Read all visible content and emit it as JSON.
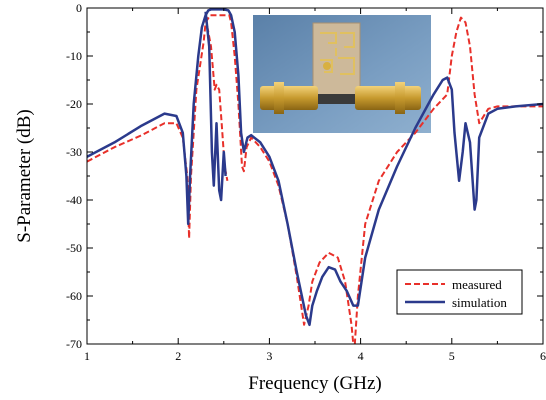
{
  "chart_data": {
    "type": "line",
    "xlabel": "Frequency (GHz)",
    "ylabel": "S-Parameter (dB)",
    "xlim": [
      1,
      6
    ],
    "ylim": [
      -70,
      0
    ],
    "x_ticks": [
      1,
      2,
      3,
      4,
      5,
      6
    ],
    "y_ticks": [
      0,
      -10,
      -20,
      -30,
      -40,
      -50,
      -60,
      -70
    ],
    "x_tick_labels": [
      "1",
      "2",
      "3",
      "4",
      "5",
      "6"
    ],
    "y_tick_labels": [
      "0",
      "-10",
      "-20",
      "-30",
      "-40",
      "-50",
      "-60",
      "-70"
    ],
    "grid": false,
    "legend_position": "bottom-right",
    "inset_image": "photo of fabricated filter board with two SMA connectors",
    "series": [
      {
        "name": "measured",
        "curve": "S21",
        "color": "#e8302a",
        "dash": "dashed",
        "x": [
          1.0,
          1.3,
          1.6,
          1.85,
          1.98,
          2.05,
          2.1,
          2.12,
          2.14,
          2.2,
          2.28,
          2.3,
          2.35,
          2.4,
          2.45,
          2.48,
          2.52,
          2.56,
          2.58,
          2.62,
          2.66,
          2.7,
          2.72,
          2.75,
          2.8,
          2.9,
          3.0,
          3.1,
          3.2,
          3.3,
          3.38,
          3.43,
          3.47,
          3.55,
          3.65,
          3.75,
          3.83,
          3.9,
          3.93,
          3.97,
          4.05,
          4.2,
          4.4,
          4.6,
          4.8,
          4.95,
          5.0,
          5.05,
          5.1,
          5.15,
          5.2,
          5.25,
          5.3,
          5.4,
          5.5,
          5.7,
          6.0
        ],
        "y": [
          -32,
          -29,
          -26.5,
          -24,
          -24,
          -27,
          -35,
          -48,
          -35,
          -17,
          -7,
          -3,
          -1.5,
          -1.5,
          -1.5,
          -1.5,
          -1.5,
          -1.5,
          -3,
          -10,
          -20,
          -33,
          -34,
          -29,
          -27,
          -29,
          -32,
          -37,
          -45,
          -56,
          -66,
          -62,
          -57,
          -53,
          -51,
          -52,
          -57,
          -66,
          -72,
          -60,
          -45,
          -36,
          -30,
          -26,
          -21,
          -18,
          -10,
          -5,
          -2,
          -3,
          -8,
          -18,
          -24,
          -21,
          -20.5,
          -20.5,
          -20.5
        ]
      },
      {
        "name": "measured",
        "curve": "S11",
        "color": "#e8302a",
        "dash": "dashed",
        "x": [
          2.3,
          2.36,
          2.4,
          2.42,
          2.45,
          2.48,
          2.51,
          2.54
        ],
        "y": [
          -2,
          -8,
          -17,
          -16,
          -17,
          -25,
          -33,
          -36
        ]
      },
      {
        "name": "simulation",
        "curve": "S21",
        "color": "#2b3a8c",
        "dash": "solid",
        "x": [
          1.0,
          1.3,
          1.6,
          1.85,
          1.98,
          2.05,
          2.09,
          2.11,
          2.13,
          2.17,
          2.22,
          2.26,
          2.3,
          2.33,
          2.36,
          2.4,
          2.45,
          2.5,
          2.55,
          2.58,
          2.62,
          2.66,
          2.69,
          2.72,
          2.76,
          2.8,
          2.9,
          3.0,
          3.1,
          3.2,
          3.3,
          3.4,
          3.44,
          3.47,
          3.52,
          3.58,
          3.65,
          3.72,
          3.78,
          3.85,
          3.92,
          3.97,
          4.05,
          4.2,
          4.4,
          4.6,
          4.8,
          4.9,
          4.95,
          5.0,
          5.03,
          5.08,
          5.12,
          5.15,
          5.2,
          5.25,
          5.27,
          5.3,
          5.4,
          5.5,
          5.7,
          6.0
        ],
        "y": [
          -31,
          -28,
          -24.5,
          -22,
          -22.5,
          -26,
          -35,
          -45,
          -35,
          -20,
          -10,
          -4,
          -1.5,
          -0.5,
          -0.3,
          -0.3,
          -0.3,
          -0.3,
          -0.5,
          -1.5,
          -5,
          -14,
          -26,
          -30,
          -27,
          -26.5,
          -28,
          -31,
          -36,
          -45,
          -55,
          -64,
          -66,
          -62,
          -59,
          -56,
          -54,
          -54.5,
          -57,
          -59,
          -62,
          -62,
          -52,
          -42,
          -33,
          -25,
          -18,
          -15,
          -14.5,
          -17,
          -26,
          -36,
          -30,
          -24,
          -28,
          -42,
          -40,
          -27,
          -22,
          -21,
          -20.5,
          -20
        ]
      },
      {
        "name": "simulation",
        "curve": "S11",
        "color": "#2b3a8c",
        "dash": "solid",
        "x": [
          2.3,
          2.34,
          2.37,
          2.39,
          2.42,
          2.45,
          2.47,
          2.5,
          2.52
        ],
        "y": [
          -0.8,
          -8,
          -30,
          -37,
          -24,
          -38,
          -40,
          -30,
          -35
        ]
      }
    ],
    "legend": [
      {
        "label": "measured",
        "color": "#e8302a",
        "dash": "dashed"
      },
      {
        "label": "simulation",
        "color": "#2b3a8c",
        "dash": "solid"
      }
    ]
  }
}
